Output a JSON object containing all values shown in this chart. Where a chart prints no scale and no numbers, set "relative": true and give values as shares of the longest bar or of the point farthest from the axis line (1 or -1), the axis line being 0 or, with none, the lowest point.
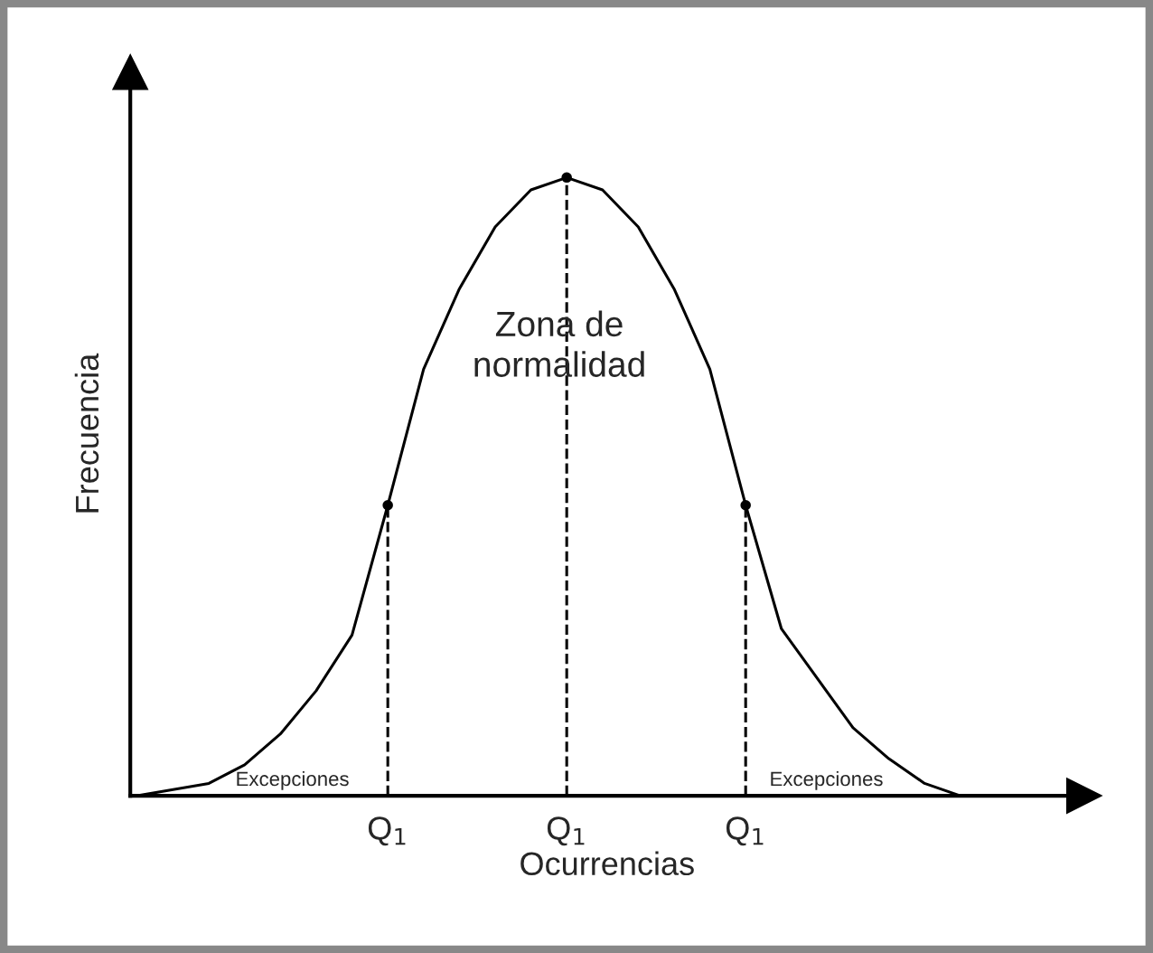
{
  "chart_data": {
    "type": "line",
    "relative": true,
    "xlabel": "Ocurrencias",
    "ylabel": "Frecuencia",
    "marker": "none",
    "tick_labels": "x",
    "categories": [
      null,
      null,
      null,
      null,
      null,
      null,
      null,
      "Q$_{1}$",
      null,
      null,
      null,
      null,
      "Q$_{1}$",
      null,
      null,
      null,
      null,
      "Q$_{1}$",
      null,
      null,
      null,
      null,
      null,
      null
    ],
    "series": [
      {
        "color": "#000000",
        "line_style": "solid",
        "values": [
          0,
          0.01,
          0.02,
          0.05,
          0.1,
          0.17,
          0.26,
          0.47,
          0.69,
          0.82,
          0.92,
          0.98,
          1,
          0.98,
          0.92,
          0.82,
          0.69,
          0.47,
          0.27,
          0.19,
          0.11,
          0.06,
          0.02,
          0
        ]
      },
      {
        "type": "lollipop",
        "color": "#000000",
        "line_style": "dashed",
        "marker": "circle",
        "values": [
          null,
          null,
          null,
          null,
          null,
          null,
          null,
          0.47,
          null,
          null,
          null,
          null,
          1,
          null,
          null,
          null,
          null,
          0.47,
          null,
          null,
          null,
          null,
          null,
          null
        ]
      }
    ],
    "annotations": [
      "Zona de\nnormalidad",
      "Excepciones",
      "Excepciones"
    ]
  }
}
